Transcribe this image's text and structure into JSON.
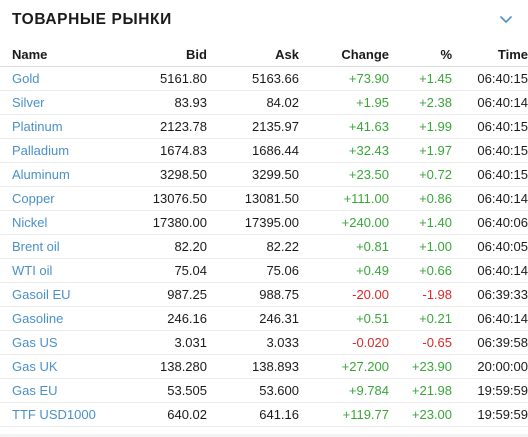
{
  "widget": {
    "title": "ТОВАРНЫЕ РЫНКИ",
    "collapse_icon": "chevron-down-icon",
    "accent_color": "#4a90c9",
    "positive_color": "#3aa63a",
    "negative_color": "#d92b2b"
  },
  "table": {
    "headers": {
      "name": "Name",
      "bid": "Bid",
      "ask": "Ask",
      "change": "Change",
      "percent": "%",
      "time": "Time"
    },
    "rows": [
      {
        "name": "Gold",
        "bid": "5161.80",
        "ask": "5163.66",
        "change": "+73.90",
        "percent": "+1.45",
        "time": "06:40:15",
        "trend": "up"
      },
      {
        "name": "Silver",
        "bid": "83.93",
        "ask": "84.02",
        "change": "+1.95",
        "percent": "+2.38",
        "time": "06:40:14",
        "trend": "up"
      },
      {
        "name": "Platinum",
        "bid": "2123.78",
        "ask": "2135.97",
        "change": "+41.63",
        "percent": "+1.99",
        "time": "06:40:15",
        "trend": "up"
      },
      {
        "name": "Palladium",
        "bid": "1674.83",
        "ask": "1686.44",
        "change": "+32.43",
        "percent": "+1.97",
        "time": "06:40:15",
        "trend": "up"
      },
      {
        "name": "Aluminum",
        "bid": "3298.50",
        "ask": "3299.50",
        "change": "+23.50",
        "percent": "+0.72",
        "time": "06:40:15",
        "trend": "up"
      },
      {
        "name": "Copper",
        "bid": "13076.50",
        "ask": "13081.50",
        "change": "+111.00",
        "percent": "+0.86",
        "time": "06:40:14",
        "trend": "up"
      },
      {
        "name": "Nickel",
        "bid": "17380.00",
        "ask": "17395.00",
        "change": "+240.00",
        "percent": "+1.40",
        "time": "06:40:06",
        "trend": "up"
      },
      {
        "name": "Brent oil",
        "bid": "82.20",
        "ask": "82.22",
        "change": "+0.81",
        "percent": "+1.00",
        "time": "06:40:05",
        "trend": "up"
      },
      {
        "name": "WTI oil",
        "bid": "75.04",
        "ask": "75.06",
        "change": "+0.49",
        "percent": "+0.66",
        "time": "06:40:14",
        "trend": "up"
      },
      {
        "name": "Gasoil EU",
        "bid": "987.25",
        "ask": "988.75",
        "change": "-20.00",
        "percent": "-1.98",
        "time": "06:39:33",
        "trend": "down"
      },
      {
        "name": "Gasoline",
        "bid": "246.16",
        "ask": "246.31",
        "change": "+0.51",
        "percent": "+0.21",
        "time": "06:40:14",
        "trend": "up"
      },
      {
        "name": "Gas US",
        "bid": "3.031",
        "ask": "3.033",
        "change": "-0.020",
        "percent": "-0.65",
        "time": "06:39:58",
        "trend": "down"
      },
      {
        "name": "Gas UK",
        "bid": "138.280",
        "ask": "138.893",
        "change": "+27.200",
        "percent": "+23.90",
        "time": "20:00:00",
        "trend": "up"
      },
      {
        "name": "Gas EU",
        "bid": "53.505",
        "ask": "53.600",
        "change": "+9.784",
        "percent": "+21.98",
        "time": "19:59:59",
        "trend": "up"
      },
      {
        "name": "TTF USD1000",
        "bid": "640.02",
        "ask": "641.16",
        "change": "+119.77",
        "percent": "+23.00",
        "time": "19:59:59",
        "trend": "up"
      }
    ]
  }
}
